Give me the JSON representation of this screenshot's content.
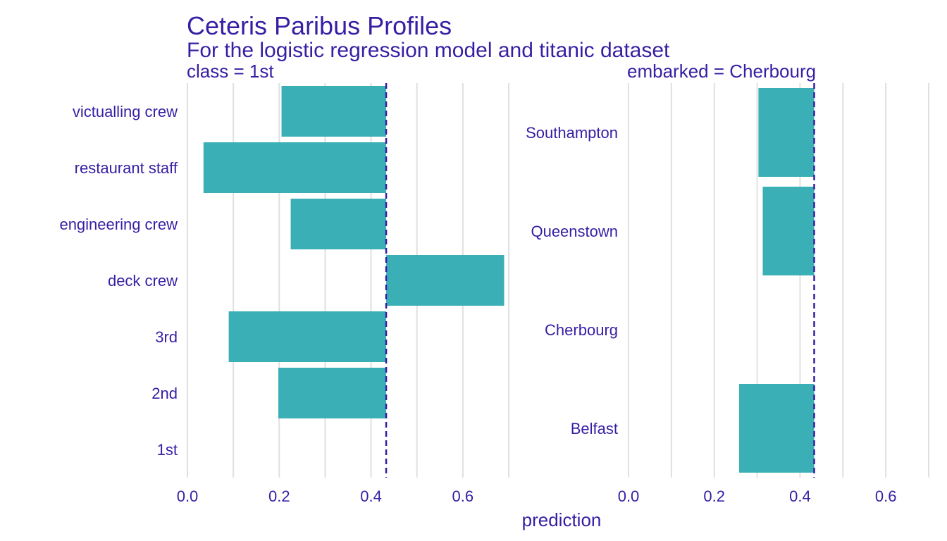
{
  "chart_data": {
    "type": "bar",
    "title": "Ceteris Paribus Profiles",
    "subtitle": "For the logistic regression model and titanic dataset",
    "xlabel": "prediction",
    "xlim": [
      0.0,
      0.7
    ],
    "x_ticks": [
      "0.0",
      "0.2",
      "0.4",
      "0.6"
    ],
    "colors": {
      "bar": "#3aafb6",
      "text": "#371ea3",
      "grid": "#e0e0e0",
      "reference_line": "#371ea3"
    },
    "panels": [
      {
        "label": "class = 1st",
        "variable": "class",
        "reference_value": 0.433,
        "categories": [
          "victualling crew",
          "restaurant staff",
          "engineering crew",
          "deck crew",
          "3rd",
          "2nd",
          "1st"
        ],
        "values": [
          0.205,
          0.035,
          0.225,
          0.69,
          0.09,
          0.198,
          0.433
        ]
      },
      {
        "label": "embarked = Cherbourg",
        "variable": "embarked",
        "reference_value": 0.433,
        "categories": [
          "Southampton",
          "Queenstown",
          "Cherbourg",
          "Belfast"
        ],
        "values": [
          0.303,
          0.313,
          0.433,
          0.258
        ]
      }
    ]
  }
}
